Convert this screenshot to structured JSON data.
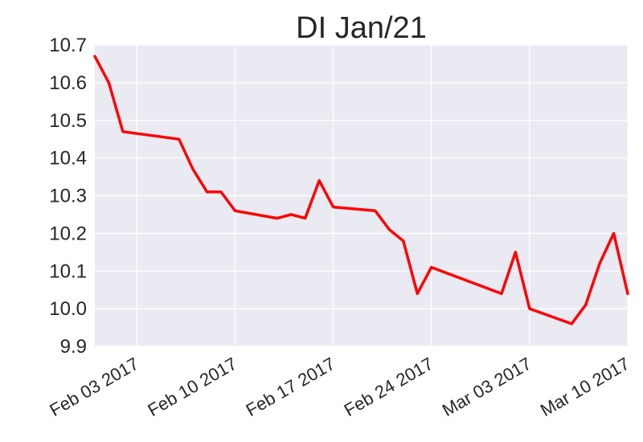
{
  "chart_data": {
    "type": "line",
    "title": "DI Jan/21",
    "xlabel": "",
    "ylabel": "",
    "ylim": [
      9.9,
      10.7
    ],
    "xlim": [
      "2017-01-31",
      "2017-03-10"
    ],
    "grid": true,
    "background": "#EAEAF2",
    "line_color": "#FF0000",
    "yticks": [
      "9.9",
      "10.0",
      "10.1",
      "10.2",
      "10.3",
      "10.4",
      "10.5",
      "10.6",
      "10.7"
    ],
    "xticks": [
      {
        "date": "2017-02-03",
        "label": "Feb 03 2017"
      },
      {
        "date": "2017-02-10",
        "label": "Feb 10 2017"
      },
      {
        "date": "2017-02-17",
        "label": "Feb 17 2017"
      },
      {
        "date": "2017-02-24",
        "label": "Feb 24 2017"
      },
      {
        "date": "2017-03-03",
        "label": "Mar 03 2017"
      },
      {
        "date": "2017-03-10",
        "label": "Mar 10 2017"
      }
    ],
    "series": [
      {
        "x": [
          "2017-01-31",
          "2017-02-01",
          "2017-02-02",
          "2017-02-06",
          "2017-02-07",
          "2017-02-08",
          "2017-02-09",
          "2017-02-10",
          "2017-02-13",
          "2017-02-14",
          "2017-02-15",
          "2017-02-16",
          "2017-02-17",
          "2017-02-20",
          "2017-02-21",
          "2017-02-22",
          "2017-02-23",
          "2017-02-24",
          "2017-03-01",
          "2017-03-02",
          "2017-03-03",
          "2017-03-06",
          "2017-03-07",
          "2017-03-08",
          "2017-03-09",
          "2017-03-10"
        ],
        "values": [
          10.67,
          10.6,
          10.47,
          10.45,
          10.37,
          10.31,
          10.31,
          10.26,
          10.24,
          10.25,
          10.24,
          10.34,
          10.27,
          10.26,
          10.21,
          10.18,
          10.04,
          10.11,
          10.04,
          10.15,
          10.0,
          9.96,
          10.01,
          10.12,
          10.2,
          10.04
        ]
      }
    ]
  }
}
